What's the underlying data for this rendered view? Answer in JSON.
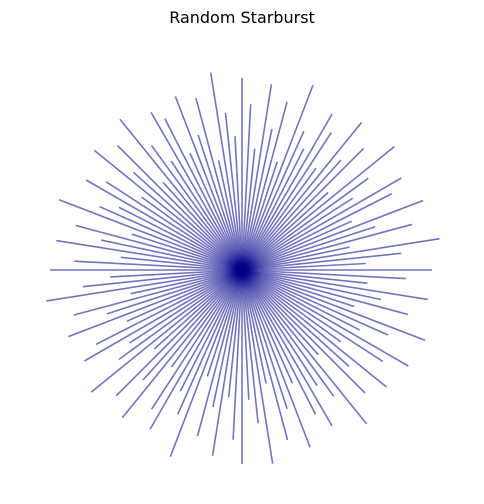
{
  "chart_data": {
    "type": "line",
    "title": "Random Starburst",
    "xlabel": "",
    "ylabel": "",
    "axis_visible": false,
    "grid": false,
    "legend": "none",
    "line_color": "#00008b",
    "line_alpha": 0.55,
    "center": [
      0,
      0
    ],
    "xlim": [
      -1.1,
      1.1
    ],
    "ylim": [
      -1.1,
      1.1
    ],
    "rays": [
      {
        "angle": 0,
        "length": 0.95
      },
      {
        "angle": 3,
        "length": 0.62
      },
      {
        "angle": 6,
        "length": 0.8
      },
      {
        "angle": 9,
        "length": 1.0
      },
      {
        "angle": 12,
        "length": 0.55
      },
      {
        "angle": 15,
        "length": 0.88
      },
      {
        "angle": 18,
        "length": 0.7
      },
      {
        "angle": 21,
        "length": 0.97
      },
      {
        "angle": 24,
        "length": 0.6
      },
      {
        "angle": 27,
        "length": 0.84
      },
      {
        "angle": 30,
        "length": 0.92
      },
      {
        "angle": 33,
        "length": 0.66
      },
      {
        "angle": 36,
        "length": 0.78
      },
      {
        "angle": 39,
        "length": 0.98
      },
      {
        "angle": 42,
        "length": 0.58
      },
      {
        "angle": 45,
        "length": 0.86
      },
      {
        "angle": 48,
        "length": 0.74
      },
      {
        "angle": 51,
        "length": 0.95
      },
      {
        "angle": 54,
        "length": 0.63
      },
      {
        "angle": 57,
        "length": 0.82
      },
      {
        "angle": 60,
        "length": 0.9
      },
      {
        "angle": 63,
        "length": 0.68
      },
      {
        "angle": 66,
        "length": 0.76
      },
      {
        "angle": 69,
        "length": 0.99
      },
      {
        "angle": 72,
        "length": 0.57
      },
      {
        "angle": 75,
        "length": 0.87
      },
      {
        "angle": 78,
        "length": 0.72
      },
      {
        "angle": 81,
        "length": 0.94
      },
      {
        "angle": 84,
        "length": 0.61
      },
      {
        "angle": 87,
        "length": 0.83
      },
      {
        "angle": 90,
        "length": 0.96
      },
      {
        "angle": 93,
        "length": 0.67
      },
      {
        "angle": 96,
        "length": 0.79
      },
      {
        "angle": 99,
        "length": 1.0
      },
      {
        "angle": 102,
        "length": 0.56
      },
      {
        "angle": 105,
        "length": 0.89
      },
      {
        "angle": 108,
        "length": 0.71
      },
      {
        "angle": 111,
        "length": 0.93
      },
      {
        "angle": 114,
        "length": 0.64
      },
      {
        "angle": 117,
        "length": 0.85
      },
      {
        "angle": 120,
        "length": 0.91
      },
      {
        "angle": 123,
        "length": 0.65
      },
      {
        "angle": 126,
        "length": 0.77
      },
      {
        "angle": 129,
        "length": 0.97
      },
      {
        "angle": 132,
        "length": 0.59
      },
      {
        "angle": 135,
        "length": 0.88
      },
      {
        "angle": 138,
        "length": 0.73
      },
      {
        "angle": 141,
        "length": 0.95
      },
      {
        "angle": 144,
        "length": 0.62
      },
      {
        "angle": 147,
        "length": 0.81
      },
      {
        "angle": 150,
        "length": 0.9
      },
      {
        "angle": 153,
        "length": 0.69
      },
      {
        "angle": 156,
        "length": 0.78
      },
      {
        "angle": 159,
        "length": 0.98
      },
      {
        "angle": 162,
        "length": 0.58
      },
      {
        "angle": 165,
        "length": 0.86
      },
      {
        "angle": 168,
        "length": 0.72
      },
      {
        "angle": 171,
        "length": 0.94
      },
      {
        "angle": 174,
        "length": 0.61
      },
      {
        "angle": 177,
        "length": 0.84
      },
      {
        "angle": 180,
        "length": 0.96
      },
      {
        "angle": 183,
        "length": 0.66
      },
      {
        "angle": 186,
        "length": 0.8
      },
      {
        "angle": 189,
        "length": 0.99
      },
      {
        "angle": 192,
        "length": 0.57
      },
      {
        "angle": 195,
        "length": 0.87
      },
      {
        "angle": 198,
        "length": 0.71
      },
      {
        "angle": 201,
        "length": 0.93
      },
      {
        "angle": 204,
        "length": 0.63
      },
      {
        "angle": 207,
        "length": 0.82
      },
      {
        "angle": 210,
        "length": 0.91
      },
      {
        "angle": 213,
        "length": 0.67
      },
      {
        "angle": 216,
        "length": 0.76
      },
      {
        "angle": 219,
        "length": 0.97
      },
      {
        "angle": 222,
        "length": 0.59
      },
      {
        "angle": 225,
        "length": 0.89
      },
      {
        "angle": 228,
        "length": 0.74
      },
      {
        "angle": 231,
        "length": 0.95
      },
      {
        "angle": 234,
        "length": 0.6
      },
      {
        "angle": 237,
        "length": 0.83
      },
      {
        "angle": 240,
        "length": 0.92
      },
      {
        "angle": 243,
        "length": 0.68
      },
      {
        "angle": 246,
        "length": 0.79
      },
      {
        "angle": 249,
        "length": 1.0
      },
      {
        "angle": 252,
        "length": 0.56
      },
      {
        "angle": 255,
        "length": 0.86
      },
      {
        "angle": 258,
        "length": 0.7
      },
      {
        "angle": 261,
        "length": 0.94
      },
      {
        "angle": 264,
        "length": 0.64
      },
      {
        "angle": 267,
        "length": 0.85
      },
      {
        "angle": 270,
        "length": 0.97
      },
      {
        "angle": 273,
        "length": 0.65
      },
      {
        "angle": 276,
        "length": 0.77
      },
      {
        "angle": 279,
        "length": 0.98
      },
      {
        "angle": 282,
        "length": 0.58
      },
      {
        "angle": 285,
        "length": 0.88
      },
      {
        "angle": 288,
        "length": 0.73
      },
      {
        "angle": 291,
        "length": 0.95
      },
      {
        "angle": 294,
        "length": 0.62
      },
      {
        "angle": 297,
        "length": 0.81
      },
      {
        "angle": 300,
        "length": 0.9
      },
      {
        "angle": 303,
        "length": 0.69
      },
      {
        "angle": 306,
        "length": 0.78
      },
      {
        "angle": 309,
        "length": 0.99
      },
      {
        "angle": 312,
        "length": 0.57
      },
      {
        "angle": 315,
        "length": 0.87
      },
      {
        "angle": 318,
        "length": 0.72
      },
      {
        "angle": 321,
        "length": 0.93
      },
      {
        "angle": 324,
        "length": 0.61
      },
      {
        "angle": 327,
        "length": 0.84
      },
      {
        "angle": 330,
        "length": 0.96
      },
      {
        "angle": 333,
        "length": 0.66
      },
      {
        "angle": 336,
        "length": 0.8
      },
      {
        "angle": 339,
        "length": 0.98
      },
      {
        "angle": 342,
        "length": 0.59
      },
      {
        "angle": 345,
        "length": 0.86
      },
      {
        "angle": 348,
        "length": 0.71
      },
      {
        "angle": 351,
        "length": 0.94
      },
      {
        "angle": 354,
        "length": 0.63
      },
      {
        "angle": 357,
        "length": 0.82
      }
    ]
  }
}
